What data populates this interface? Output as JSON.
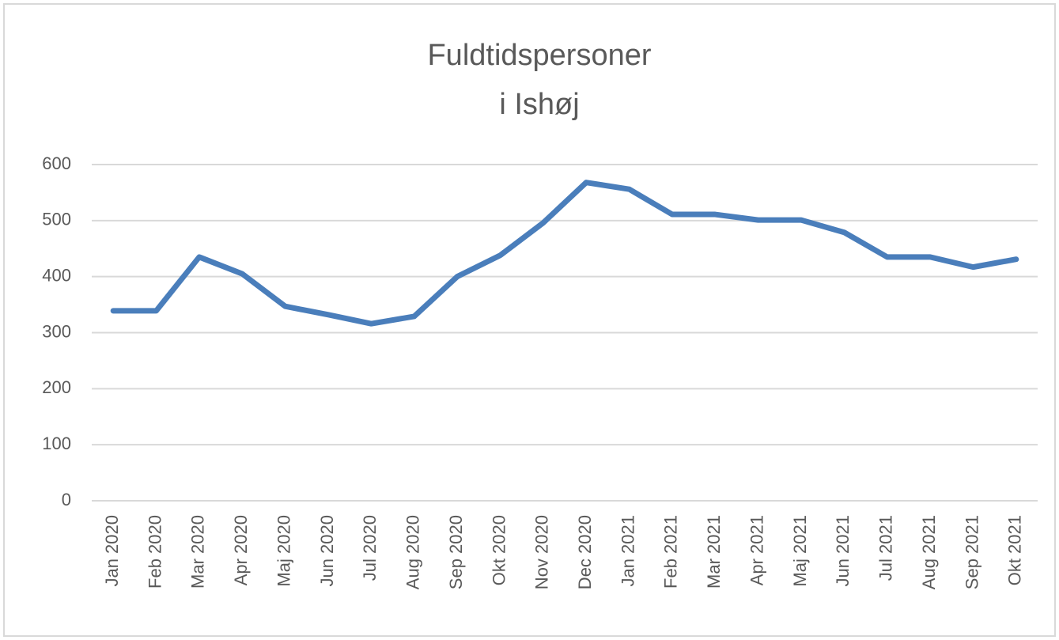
{
  "chart_data": {
    "type": "line",
    "title": [
      "Fuldtidspersoner",
      "i Ishøj"
    ],
    "categories": [
      "Jan 2020",
      "Feb 2020",
      "Mar 2020",
      "Apr 2020",
      "Maj 2020",
      "Jun 2020",
      "Jul 2020",
      "Aug 2020",
      "Sep 2020",
      "Okt 2020",
      "Nov 2020",
      "Dec 2020",
      "Jan 2021",
      "Feb 2021",
      "Mar 2021",
      "Apr 2021",
      "Maj 2021",
      "Jun 2021",
      "Jul 2021",
      "Aug 2021",
      "Sep 2021",
      "Okt 2021"
    ],
    "values": [
      339,
      339,
      435,
      405,
      347,
      332,
      316,
      329,
      400,
      438,
      496,
      568,
      556,
      511,
      511,
      501,
      501,
      479,
      435,
      435,
      417,
      431
    ],
    "color": "#4a7ebb",
    "ylim": [
      0,
      600
    ],
    "yticks": [
      0,
      100,
      200,
      300,
      400,
      500,
      600
    ],
    "grid": true
  }
}
